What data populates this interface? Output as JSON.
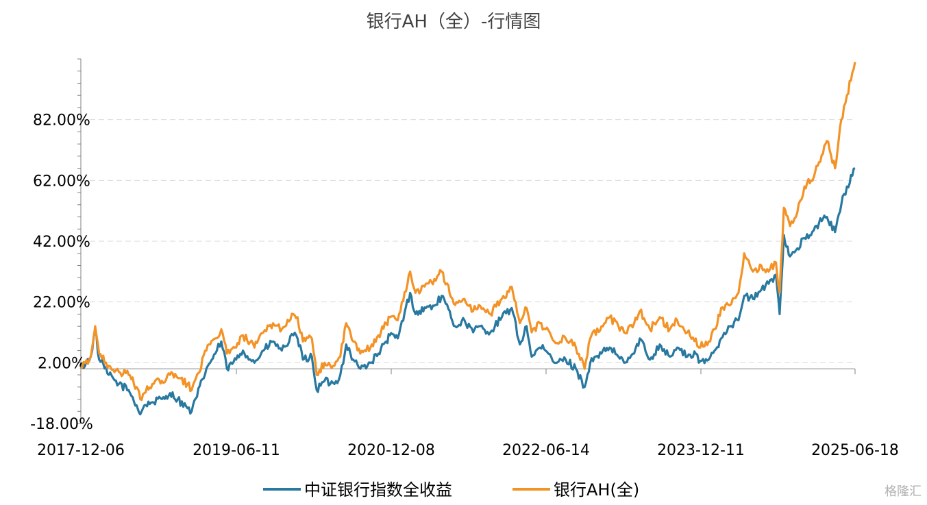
{
  "chart_data": {
    "type": "line",
    "title": "银行AH（全）-行情图",
    "yticks": [
      "-18.00%",
      "2.00%",
      "22.00%",
      "42.00%",
      "62.00%",
      "82.00%"
    ],
    "ytick_values": [
      -18,
      2,
      22,
      42,
      62,
      82
    ],
    "ylim": [
      -18,
      102
    ],
    "xticks": [
      "2017-12-06",
      "2019-06-11",
      "2020-12-08",
      "2022-06-14",
      "2023-12-11",
      "2025-06-18"
    ],
    "x_start": "2017-12-06",
    "x_end": "2025-06-18",
    "grid": true,
    "legend_position": "bottom",
    "series": [
      {
        "name": "中证银行指数全收益",
        "color": "#2878a0",
        "points": [
          [
            "2017-12-06",
            0.0
          ],
          [
            "2018-01-10",
            4
          ],
          [
            "2018-01-26",
            13
          ],
          [
            "2018-02-09",
            3
          ],
          [
            "2018-03-15",
            -2
          ],
          [
            "2018-04-20",
            -5
          ],
          [
            "2018-05-25",
            -7
          ],
          [
            "2018-06-22",
            -12
          ],
          [
            "2018-07-05",
            -15
          ],
          [
            "2018-07-20",
            -12
          ],
          [
            "2018-08-17",
            -11
          ],
          [
            "2018-09-20",
            -10
          ],
          [
            "2018-10-19",
            -8
          ],
          [
            "2018-11-15",
            -10
          ],
          [
            "2018-12-20",
            -13
          ],
          [
            "2019-01-04",
            -14
          ],
          [
            "2019-02-25",
            0
          ],
          [
            "2019-03-29",
            5
          ],
          [
            "2019-04-19",
            9
          ],
          [
            "2019-05-09",
            0
          ],
          [
            "2019-06-11",
            3
          ],
          [
            "2019-07-05",
            6
          ],
          [
            "2019-08-15",
            2
          ],
          [
            "2019-09-16",
            6
          ],
          [
            "2019-10-20",
            9
          ],
          [
            "2019-11-20",
            6
          ],
          [
            "2019-12-31",
            11
          ],
          [
            "2020-01-15",
            10
          ],
          [
            "2020-02-03",
            3
          ],
          [
            "2020-03-06",
            4
          ],
          [
            "2020-03-23",
            -7
          ],
          [
            "2020-04-20",
            -4
          ],
          [
            "2020-05-25",
            -5
          ],
          [
            "2020-06-15",
            -2
          ],
          [
            "2020-07-06",
            8
          ],
          [
            "2020-07-31",
            3
          ],
          [
            "2020-08-25",
            0
          ],
          [
            "2020-09-30",
            2
          ],
          [
            "2020-10-28",
            5
          ],
          [
            "2020-11-25",
            9
          ],
          [
            "2020-12-08",
            11
          ],
          [
            "2021-01-05",
            10
          ],
          [
            "2021-02-18",
            25
          ],
          [
            "2021-03-09",
            18
          ],
          [
            "2021-04-15",
            20
          ],
          [
            "2021-05-20",
            21
          ],
          [
            "2021-06-10",
            24
          ],
          [
            "2021-07-28",
            14
          ],
          [
            "2021-08-30",
            16
          ],
          [
            "2021-09-30",
            12
          ],
          [
            "2021-10-20",
            14
          ],
          [
            "2021-11-30",
            12
          ],
          [
            "2022-01-10",
            17
          ],
          [
            "2022-02-14",
            20
          ],
          [
            "2022-03-15",
            8
          ],
          [
            "2022-04-08",
            14
          ],
          [
            "2022-04-26",
            4
          ],
          [
            "2022-05-25",
            7
          ],
          [
            "2022-06-14",
            6
          ],
          [
            "2022-07-15",
            2
          ],
          [
            "2022-08-25",
            3
          ],
          [
            "2022-09-30",
            0
          ],
          [
            "2022-10-31",
            -6
          ],
          [
            "2022-11-20",
            2
          ],
          [
            "2022-12-30",
            5
          ],
          [
            "2023-01-28",
            7
          ],
          [
            "2023-02-28",
            4
          ],
          [
            "2023-03-20",
            2
          ],
          [
            "2023-04-25",
            5
          ],
          [
            "2023-05-15",
            10
          ],
          [
            "2023-06-20",
            3
          ],
          [
            "2023-07-25",
            8
          ],
          [
            "2023-08-30",
            4
          ],
          [
            "2023-09-25",
            7
          ],
          [
            "2023-10-31",
            4
          ],
          [
            "2023-11-30",
            5
          ],
          [
            "2023-12-11",
            2
          ],
          [
            "2024-01-15",
            3
          ],
          [
            "2024-02-05",
            6
          ],
          [
            "2024-02-28",
            10
          ],
          [
            "2024-03-25",
            14
          ],
          [
            "2024-04-30",
            16
          ],
          [
            "2024-05-20",
            24
          ],
          [
            "2024-06-20",
            23
          ],
          [
            "2024-07-20",
            26
          ],
          [
            "2024-08-15",
            28
          ],
          [
            "2024-09-10",
            31
          ],
          [
            "2024-09-23",
            18
          ],
          [
            "2024-10-08",
            44
          ],
          [
            "2024-10-30",
            37
          ],
          [
            "2024-11-20",
            39
          ],
          [
            "2024-12-20",
            43
          ],
          [
            "2025-01-13",
            44
          ],
          [
            "2025-02-10",
            48
          ],
          [
            "2025-03-10",
            50
          ],
          [
            "2025-04-08",
            45
          ],
          [
            "2025-04-30",
            54
          ],
          [
            "2025-05-20",
            60
          ],
          [
            "2025-06-18",
            66
          ]
        ]
      },
      {
        "name": "银行AH(全)",
        "color": "#f39225",
        "points": [
          [
            "2017-12-06",
            0.0
          ],
          [
            "2018-01-10",
            4
          ],
          [
            "2018-01-26",
            14
          ],
          [
            "2018-02-09",
            5
          ],
          [
            "2018-03-15",
            1
          ],
          [
            "2018-04-20",
            -1
          ],
          [
            "2018-05-25",
            -2
          ],
          [
            "2018-06-22",
            -6
          ],
          [
            "2018-07-05",
            -10
          ],
          [
            "2018-07-20",
            -8
          ],
          [
            "2018-08-17",
            -5
          ],
          [
            "2018-09-20",
            -4
          ],
          [
            "2018-10-19",
            -2
          ],
          [
            "2018-11-15",
            -3
          ],
          [
            "2018-12-20",
            -5
          ],
          [
            "2019-01-04",
            -7
          ],
          [
            "2019-02-25",
            6
          ],
          [
            "2019-03-29",
            10
          ],
          [
            "2019-04-19",
            13
          ],
          [
            "2019-05-09",
            5
          ],
          [
            "2019-06-11",
            7
          ],
          [
            "2019-07-05",
            11
          ],
          [
            "2019-08-15",
            7
          ],
          [
            "2019-09-16",
            12
          ],
          [
            "2019-10-20",
            15
          ],
          [
            "2019-11-20",
            13
          ],
          [
            "2019-12-31",
            18
          ],
          [
            "2020-01-15",
            17
          ],
          [
            "2020-02-03",
            9
          ],
          [
            "2020-03-06",
            10
          ],
          [
            "2020-03-23",
            -2
          ],
          [
            "2020-04-20",
            2
          ],
          [
            "2020-05-25",
            1
          ],
          [
            "2020-06-15",
            4
          ],
          [
            "2020-07-06",
            15
          ],
          [
            "2020-07-31",
            9
          ],
          [
            "2020-08-25",
            5
          ],
          [
            "2020-09-30",
            7
          ],
          [
            "2020-10-28",
            11
          ],
          [
            "2020-11-25",
            15
          ],
          [
            "2020-12-08",
            17
          ],
          [
            "2021-01-05",
            16
          ],
          [
            "2021-02-18",
            32
          ],
          [
            "2021-03-09",
            25
          ],
          [
            "2021-04-15",
            28
          ],
          [
            "2021-05-20",
            29
          ],
          [
            "2021-06-10",
            32
          ],
          [
            "2021-07-28",
            21
          ],
          [
            "2021-08-30",
            23
          ],
          [
            "2021-09-30",
            19
          ],
          [
            "2021-10-20",
            21
          ],
          [
            "2021-11-30",
            18
          ],
          [
            "2022-01-10",
            23
          ],
          [
            "2022-02-14",
            27
          ],
          [
            "2022-03-15",
            15
          ],
          [
            "2022-04-08",
            20
          ],
          [
            "2022-04-26",
            12
          ],
          [
            "2022-05-25",
            15
          ],
          [
            "2022-06-14",
            13
          ],
          [
            "2022-07-15",
            9
          ],
          [
            "2022-08-25",
            10
          ],
          [
            "2022-09-30",
            7
          ],
          [
            "2022-10-31",
            0
          ],
          [
            "2022-11-20",
            10
          ],
          [
            "2022-12-30",
            14
          ],
          [
            "2023-01-28",
            17
          ],
          [
            "2023-02-28",
            14
          ],
          [
            "2023-03-20",
            12
          ],
          [
            "2023-04-25",
            15
          ],
          [
            "2023-05-15",
            19
          ],
          [
            "2023-06-20",
            13
          ],
          [
            "2023-07-25",
            17
          ],
          [
            "2023-08-30",
            13
          ],
          [
            "2023-09-25",
            16
          ],
          [
            "2023-10-31",
            12
          ],
          [
            "2023-11-30",
            10
          ],
          [
            "2023-12-11",
            7
          ],
          [
            "2024-01-15",
            9
          ],
          [
            "2024-02-05",
            13
          ],
          [
            "2024-02-28",
            20
          ],
          [
            "2024-03-25",
            21
          ],
          [
            "2024-04-30",
            25
          ],
          [
            "2024-05-20",
            38
          ],
          [
            "2024-06-20",
            32
          ],
          [
            "2024-07-20",
            34
          ],
          [
            "2024-08-15",
            32
          ],
          [
            "2024-09-10",
            35
          ],
          [
            "2024-09-23",
            25
          ],
          [
            "2024-10-08",
            53
          ],
          [
            "2024-10-30",
            47
          ],
          [
            "2024-11-20",
            50
          ],
          [
            "2024-12-20",
            60
          ],
          [
            "2025-01-13",
            62
          ],
          [
            "2025-02-10",
            68
          ],
          [
            "2025-03-10",
            75
          ],
          [
            "2025-04-08",
            66
          ],
          [
            "2025-04-30",
            82
          ],
          [
            "2025-05-20",
            90
          ],
          [
            "2025-06-18",
            101
          ]
        ]
      }
    ]
  },
  "watermark": "格隆汇"
}
